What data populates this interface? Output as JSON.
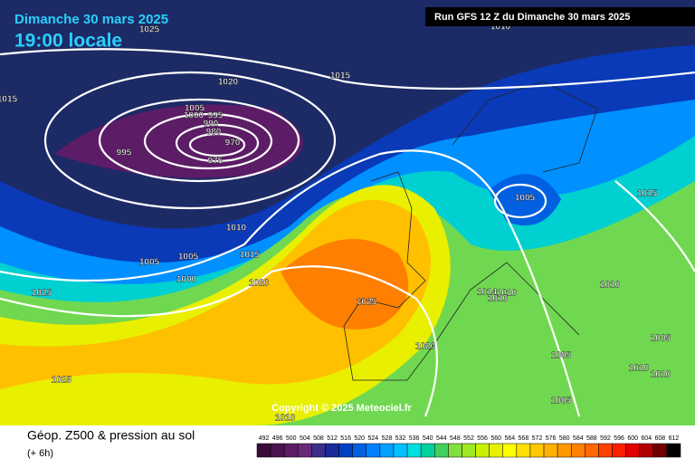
{
  "header": {
    "date": "Dimanche 30 mars 2025",
    "time": "19:00 locale",
    "run": "Run GFS 12 Z du Dimanche 30 mars 2025"
  },
  "isobar_labels": [
    "1025",
    "1010",
    "1020",
    "1015",
    "1015",
    "1005",
    "1000",
    "995",
    "990",
    "980",
    "970",
    "975",
    "995",
    "1005",
    "1015",
    "1010",
    "1005",
    "1005",
    "1015",
    "1000",
    "1025",
    "1020",
    "1025",
    "1010",
    "1014",
    "1010",
    "1010",
    "1020",
    "1005",
    "1005",
    "1010",
    "1010",
    "1025",
    "1005",
    "1010"
  ],
  "copyright": "Copyright © 2025 Meteociel.fr",
  "footer": {
    "title": "Géop. Z500 & pression au sol",
    "step": "(+ 6h)"
  },
  "colorbar": {
    "values": [
      492,
      496,
      500,
      504,
      508,
      512,
      516,
      520,
      524,
      528,
      532,
      536,
      540,
      544,
      548,
      552,
      556,
      560,
      564,
      568,
      572,
      576,
      580,
      584,
      588,
      592,
      596,
      600,
      604,
      608,
      612
    ],
    "colors": [
      "#3a0a3a",
      "#4b1350",
      "#5c1c66",
      "#6a2a7a",
      "#3a2f88",
      "#1a2a9a",
      "#0040c0",
      "#0060e0",
      "#0080ff",
      "#00a0ff",
      "#00c0ff",
      "#00e0e0",
      "#00d0a0",
      "#40d060",
      "#80e040",
      "#a0e820",
      "#c8f000",
      "#e8f000",
      "#ffff00",
      "#ffe000",
      "#ffc800",
      "#ffb000",
      "#ff9800",
      "#ff8000",
      "#ff6800",
      "#ff4000",
      "#ff2000",
      "#e00000",
      "#b00000",
      "#700000",
      "#000000"
    ]
  }
}
